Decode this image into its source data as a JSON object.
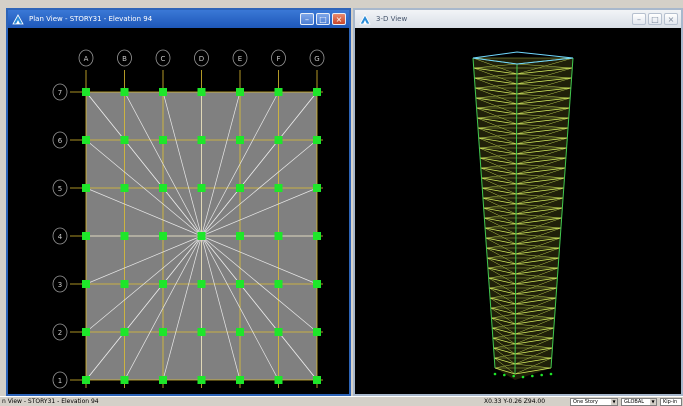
{
  "plan_window": {
    "title": "Plan View - STORY31 - Elevation 94",
    "controls": {
      "minimize": "–",
      "maximize": "□",
      "close": "×"
    },
    "columns": [
      "A",
      "B",
      "C",
      "D",
      "E",
      "F",
      "G"
    ],
    "rows": [
      "7",
      "6",
      "5",
      "4",
      "3",
      "2",
      "1"
    ]
  },
  "view3d_window": {
    "title": "3-D View",
    "controls": {
      "minimize": "–",
      "maximize": "□",
      "close": "×"
    }
  },
  "status_bar": {
    "left_text": "n View - STORY31 - Elevation 94",
    "coordinates": "X0.33  Y-0.26  Z94.00",
    "story_select": "One Story",
    "coord_system": "GLOBAL",
    "units": "Kip-in"
  },
  "colors": {
    "grid_line": "#e0c030",
    "node": "#1ee62a",
    "slab": "#808080",
    "brace": "#e8e8e8",
    "bubble": "#9a9a9a",
    "tower_frame": "#d8f060",
    "tower_edge": "#40c850",
    "roof": "#70d8ff"
  }
}
